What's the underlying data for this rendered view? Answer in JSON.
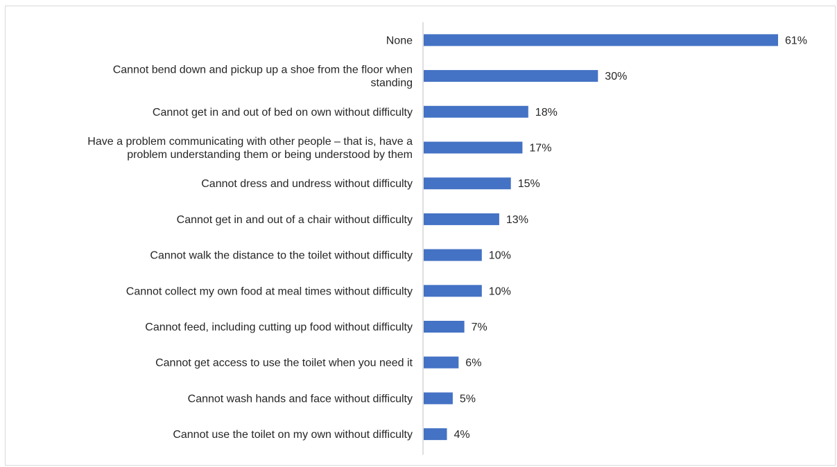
{
  "chart_data": {
    "type": "bar",
    "orientation": "horizontal",
    "categories": [
      [
        "None"
      ],
      [
        "Cannot bend down and pickup up a shoe from the floor when",
        "standing"
      ],
      [
        "Cannot get in and out of bed on own without difficulty"
      ],
      [
        "Have a problem communicating with other people – that is, have a",
        "problem understanding them or being understood by them"
      ],
      [
        "Cannot dress and undress without difficulty"
      ],
      [
        "Cannot get in and out of a chair without difficulty"
      ],
      [
        "Cannot walk the distance to the toilet without difficulty"
      ],
      [
        "Cannot collect my own food at meal times without difficulty"
      ],
      [
        "Cannot feed, including cutting up food without difficulty"
      ],
      [
        "Cannot get access to use the toilet when you need it"
      ],
      [
        "Cannot wash hands and face without difficulty"
      ],
      [
        "Cannot use the toilet on my own without difficulty"
      ]
    ],
    "values": [
      61,
      30,
      18,
      17,
      15,
      13,
      10,
      10,
      7,
      6,
      5,
      4
    ],
    "value_labels": [
      "61%",
      "30%",
      "18%",
      "17%",
      "15%",
      "13%",
      "10%",
      "10%",
      "7%",
      "6%",
      "5%",
      "4%"
    ],
    "unit": "%",
    "xlim": [
      0,
      70
    ],
    "grid": false,
    "legend": "none",
    "bar_color": "#4472C4",
    "axis_color": "#bfbfbf"
  }
}
